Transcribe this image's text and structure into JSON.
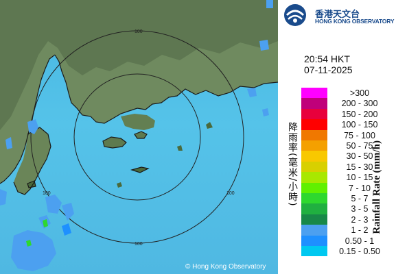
{
  "map": {
    "copyright": "© Hong Kong Observatory",
    "range_ring_labels": [
      "100",
      "100",
      "100",
      "100"
    ]
  },
  "logo": {
    "name_cn": "香港天文台",
    "name_en": "HONG KONG OBSERVATORY"
  },
  "timestamp": {
    "time": "20:54 HKT",
    "date": "07-11-2025"
  },
  "legend": {
    "title_cn": "降雨率(毫米/小時)",
    "title_en": "Rainfall Rate (mm/h)",
    "items": [
      {
        "label": ">300",
        "color": "#ff00ff"
      },
      {
        "label": "200 - 300",
        "color": "#c0007a"
      },
      {
        "label": "150 - 200",
        "color": "#e8003c"
      },
      {
        "label": "100 - 150",
        "color": "#ff0000"
      },
      {
        "label": "75 - 100",
        "color": "#f07800"
      },
      {
        "label": "50 - 75",
        "color": "#f4a000"
      },
      {
        "label": "30 - 50",
        "color": "#f8c800"
      },
      {
        "label": "15 - 30",
        "color": "#d8d000"
      },
      {
        "label": "10 - 15",
        "color": "#a8e800"
      },
      {
        "label": "7 - 10",
        "color": "#60f000"
      },
      {
        "label": "5 - 7",
        "color": "#2ed82e"
      },
      {
        "label": "3 - 5",
        "color": "#20b040"
      },
      {
        "label": "2 - 3",
        "color": "#188848"
      },
      {
        "label": "1 - 2",
        "color": "#4ca0f0"
      },
      {
        "label": "0.50 - 1",
        "color": "#1e90ff"
      },
      {
        "label": "0.15 - 0.50",
        "color": "#00c8f0"
      }
    ]
  }
}
